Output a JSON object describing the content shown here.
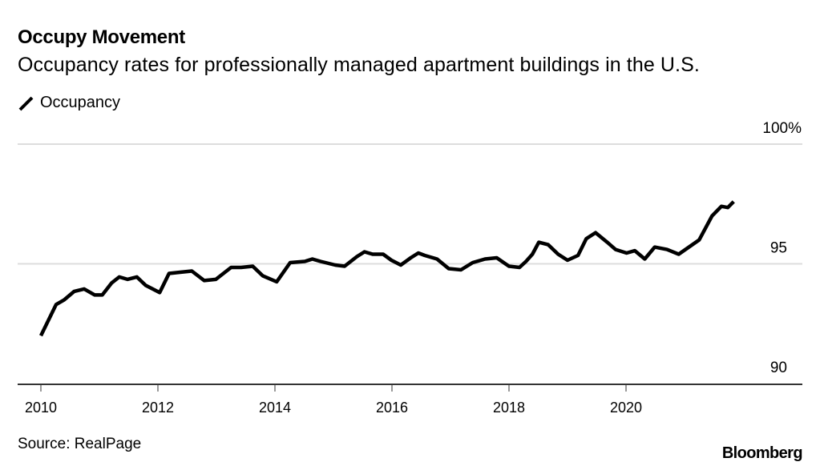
{
  "header": {
    "title": "Occupy Movement",
    "subtitle": "Occupancy rates for professionally managed apartment buildings in the U.S."
  },
  "legend": {
    "items": [
      {
        "label": "Occupancy",
        "icon": "line-segment-icon",
        "color": "#000000"
      }
    ]
  },
  "footer": {
    "source": "Source: RealPage",
    "brand": "Bloomberg"
  },
  "chart_data": {
    "type": "line",
    "title": "Occupy Movement",
    "subtitle": "Occupancy rates for professionally managed apartment buildings in the U.S.",
    "xlabel": "",
    "ylabel": "",
    "xlim": [
      2010,
      2022.4
    ],
    "ylim": [
      90,
      100
    ],
    "x_ticks": [
      2010,
      2012,
      2014,
      2016,
      2018,
      2020
    ],
    "x_tick_labels": [
      "2010",
      "2012",
      "2014",
      "2016",
      "2018",
      "2020"
    ],
    "y_ticks": [
      90,
      95,
      100
    ],
    "y_tick_labels": [
      "90",
      "95",
      "100%"
    ],
    "grid": true,
    "legend_position": "top-left",
    "colors": {
      "line": "#000000",
      "grid": "#dddddd",
      "axis": "#333333"
    },
    "series": [
      {
        "name": "Occupancy",
        "x": [
          2010.0,
          2010.12,
          2010.26,
          2010.4,
          2010.57,
          2010.74,
          2010.92,
          2011.05,
          2011.21,
          2011.34,
          2011.48,
          2011.64,
          2011.79,
          2012.03,
          2012.19,
          2012.38,
          2012.58,
          2012.79,
          2012.99,
          2013.25,
          2013.42,
          2013.62,
          2013.79,
          2014.03,
          2014.26,
          2014.51,
          2014.64,
          2014.78,
          2015.03,
          2015.19,
          2015.4,
          2015.53,
          2015.67,
          2015.85,
          2015.99,
          2016.15,
          2016.32,
          2016.45,
          2016.56,
          2016.77,
          2016.97,
          2017.18,
          2017.38,
          2017.59,
          2017.79,
          2018.0,
          2018.18,
          2018.29,
          2018.4,
          2018.51,
          2018.67,
          2018.84,
          2019.0,
          2019.18,
          2019.32,
          2019.48,
          2019.68,
          2019.82,
          2020.01,
          2020.15,
          2020.32,
          2020.49,
          2020.7,
          2020.9,
          2021.25,
          2021.47,
          2021.63,
          2021.74,
          2021.84
        ],
        "values": [
          92.0,
          92.6,
          93.3,
          93.5,
          93.85,
          93.95,
          93.7,
          93.7,
          94.2,
          94.45,
          94.35,
          94.45,
          94.1,
          93.8,
          94.6,
          94.65,
          94.7,
          94.3,
          94.35,
          94.85,
          94.85,
          94.9,
          94.5,
          94.25,
          95.05,
          95.1,
          95.2,
          95.1,
          94.95,
          94.9,
          95.3,
          95.5,
          95.4,
          95.4,
          95.15,
          94.95,
          95.25,
          95.45,
          95.35,
          95.2,
          94.8,
          94.75,
          95.05,
          95.2,
          95.25,
          94.9,
          94.85,
          95.1,
          95.4,
          95.9,
          95.8,
          95.4,
          95.15,
          95.35,
          96.05,
          96.3,
          95.9,
          95.6,
          95.45,
          95.55,
          95.2,
          95.7,
          95.6,
          95.4,
          96.0,
          97.0,
          97.4,
          97.35,
          97.6
        ]
      }
    ]
  }
}
